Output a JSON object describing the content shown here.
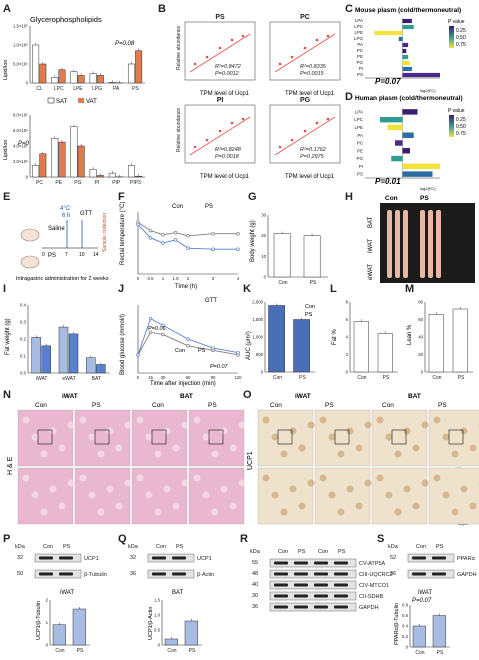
{
  "panel_letters": [
    "A",
    "B",
    "C",
    "D",
    "E",
    "F",
    "G",
    "H",
    "I",
    "J",
    "K",
    "L",
    "M",
    "N",
    "O",
    "P",
    "Q",
    "R",
    "S"
  ],
  "panelA": {
    "title": "Glycerophospholipids",
    "ylabel": "Lipid/ion",
    "legend": [
      "SAT",
      "VAT"
    ],
    "colors": {
      "SAT": "#ffffff",
      "VAT": "#e07b4f"
    },
    "top": {
      "ymax_label": "1.5×10⁶",
      "ticks": [
        "0",
        "5.0×10⁵",
        "1.0×10⁶",
        "1.5×10⁶"
      ],
      "p_label": "P=0.08"
    },
    "bottom": {
      "ticks": [
        "0",
        "2.0×10⁵",
        "4.0×10⁵",
        "6.0×10⁵",
        "8.0×10⁵"
      ],
      "p_label": "P=0"
    }
  },
  "panelB": {
    "xlabel": "TPM level of Ucp1",
    "ylabel": "Relative abundance"
  },
  "panelC": {
    "title": "Mouse plasm (cold/thermoneutral)",
    "legend_title": "P value",
    "legend_ticks": [
      "0.25",
      "0.50",
      "0.75"
    ],
    "p_label": "P=0.07",
    "xlabel": "log2(FC)"
  },
  "panelD": {
    "title": "Human plasm (cold/thermoneutral)",
    "legend_title": "P value",
    "legend_ticks": [
      "0.25",
      "0.50",
      "0.75"
    ],
    "p_label": "P=0.01",
    "xlabel": "log2(FC)"
  },
  "panelE": {
    "temp": "4°C",
    "hours": "6 h",
    "gtt": "GTT",
    "saline": "Saline",
    "ps": "PS",
    "sample": "Sample collection",
    "timeline": [
      "0",
      "7",
      "10",
      "14"
    ],
    "caption": "Intragastric administration for 2 weeks"
  },
  "panelF": {
    "ylabel": "Rectal temperature (°C)",
    "xlabel": "Time (h)",
    "legend": [
      "Con",
      "PS"
    ],
    "sig": [
      "**",
      "**",
      "**"
    ]
  },
  "panelG": {
    "ylabel": "Body weight (g)",
    "ticks": [
      "0",
      "10",
      "20",
      "30"
    ],
    "groups": [
      "Con",
      "PS"
    ]
  },
  "panelH": {
    "cols": [
      "Con",
      "PS"
    ],
    "rows": [
      "BAT",
      "iWAT",
      "eWAT"
    ]
  },
  "panelI": {
    "ylabel": "Fat weight (g)",
    "groups": [
      "iWAT",
      "eWAT",
      "BAT"
    ],
    "ticks": [
      "0.0",
      "0.1",
      "0.2",
      "0.3",
      "0.4"
    ]
  },
  "panelJ": {
    "title": "GTT",
    "ylabel": "Blood glucose (mmol/l)",
    "xlabel": "Time after injection (min)",
    "legend": [
      "Con",
      "PS"
    ],
    "p1": "P=0.06",
    "p2": "P=0.07",
    "xticks": [
      "0",
      "30",
      "60",
      "90",
      "120"
    ],
    "yticks": [
      "0",
      "10",
      "20",
      "30"
    ]
  },
  "panelK": {
    "ylabel": "AUC (μm²)",
    "groups": [
      "Con",
      "PS"
    ],
    "ticks": [
      "0",
      "500",
      "1,000",
      "1,500",
      "2,000"
    ]
  },
  "panelL": {
    "ylabel": "Fat %",
    "groups": [
      "Con",
      "PS"
    ],
    "ticks": [
      "0",
      "2",
      "4",
      "6",
      "8"
    ]
  },
  "panelM": {
    "ylabel": "Lean %",
    "groups": [
      "Con",
      "PS"
    ],
    "ticks": [
      "0",
      "20",
      "40",
      "60",
      "80"
    ]
  },
  "panelN": {
    "side": "H & E",
    "groups": [
      "iWAT",
      "BAT"
    ],
    "cols": [
      "Con",
      "PS",
      "Con",
      "PS"
    ],
    "scale": "100μm"
  },
  "panelO": {
    "side": "UCP1",
    "groups": [
      "iWAT",
      "BAT"
    ],
    "cols": [
      "Con",
      "PS",
      "Con",
      "PS"
    ],
    "scale1": "100μm",
    "scale2": "50μm"
  },
  "panelP": {
    "kda": "kDa",
    "cols": [
      "Con",
      "PS"
    ],
    "bands": [
      {
        "kda": "32",
        "label": "UCP1"
      },
      {
        "kda": "50",
        "label": "β-Tubulin"
      }
    ],
    "tissue": "iWAT",
    "ylabel": "UCP1/β-Tubulin"
  },
  "panelQ": {
    "kda": "kDa",
    "cols": [
      "Con",
      "PS"
    ],
    "bands": [
      {
        "kda": "32",
        "label": "UCP1"
      },
      {
        "kda": "36",
        "label": "β-Actin"
      }
    ],
    "tissue": "BAT",
    "ylabel": "UCP1/β-Actin"
  },
  "panelR": {
    "kda": "kDa",
    "cols": [
      "Con",
      "PS",
      "Con",
      "PS"
    ],
    "bands": [
      {
        "kda": "55",
        "label": "CV-ATP5A"
      },
      {
        "kda": "48",
        "label": "CIII-UQCRC2"
      },
      {
        "kda": "40",
        "label": "CIV-MTCO1"
      },
      {
        "kda": "30",
        "label": "CII-SDHB"
      },
      {
        "kda": "36",
        "label": "GAPDH"
      }
    ]
  },
  "panelS": {
    "kda": "kDa",
    "cols": [
      "Con",
      "PS"
    ],
    "bands": [
      {
        "kda": "52",
        "label": "PPARα"
      },
      {
        "kda": "36",
        "label": "GAPDH"
      }
    ],
    "tissue": "iWAT",
    "p": "P=0.07",
    "ylabel": "PPARα/β-Tubulin"
  },
  "chart_data": [
    {
      "id": "A-top",
      "type": "bar",
      "categories": [
        "CL",
        "LPC",
        "LPE",
        "LPG",
        "PA",
        "PS"
      ],
      "series": [
        {
          "name": "SAT",
          "values": [
            1000000.0,
            150000.0,
            300000.0,
            250000.0,
            20000.0,
            500000.0
          ]
        },
        {
          "name": "VAT",
          "values": [
            500000.0,
            350000.0,
            200000.0,
            200000.0,
            5000.0,
            850000.0
          ]
        }
      ],
      "ylim": [
        0,
        1500000.0
      ]
    },
    {
      "id": "A-bottom",
      "type": "bar",
      "categories": [
        "PC",
        "PE",
        "PG",
        "PI",
        "PIP",
        "PIP3"
      ],
      "series": [
        {
          "name": "SAT",
          "values": [
            150000.0,
            500000.0,
            650000.0,
            100000.0,
            50000.0,
            150000.0
          ]
        },
        {
          "name": "VAT",
          "values": [
            300000.0,
            450000.0,
            400000.0,
            20000.0,
            3000.0,
            10000.0
          ]
        }
      ],
      "ylim": [
        0,
        800000.0
      ]
    },
    {
      "id": "B-PS",
      "type": "scatter",
      "title": "PS",
      "annot": [
        "R²=0.8472",
        "P=0.0012"
      ]
    },
    {
      "id": "B-PC",
      "type": "scatter",
      "title": "PC",
      "annot": [
        "R²=0.8335",
        "P=0.0015"
      ]
    },
    {
      "id": "B-PI",
      "type": "scatter",
      "title": "PI",
      "annot": [
        "R²=0.8248",
        "P=0.0018"
      ]
    },
    {
      "id": "B-PG",
      "type": "scatter",
      "title": "PG",
      "annot": [
        "R²=0.1762",
        "P=0.2975"
      ]
    },
    {
      "id": "C",
      "type": "bar",
      "categories": [
        "LPA",
        "LPC",
        "LPE",
        "LPG",
        "PA",
        "PC",
        "PE",
        "PG",
        "PI",
        "PS"
      ],
      "values": [
        0.05,
        0.06,
        -0.15,
        -0.02,
        0.03,
        0.02,
        0.03,
        0.04,
        0.05,
        0.2
      ],
      "xlim": [
        -0.2,
        0.2
      ]
    },
    {
      "id": "D",
      "type": "bar",
      "categories": [
        "LPA",
        "LPC",
        "LPE",
        "PA",
        "PC",
        "PE",
        "PG",
        "PI",
        "PS"
      ],
      "values": [
        0.4,
        -0.6,
        -0.4,
        0.3,
        -0.2,
        0.2,
        -0.3,
        1.0,
        0.8
      ],
      "xlim": [
        -1,
        1
      ]
    },
    {
      "id": "F",
      "type": "line",
      "x": [
        0,
        0.5,
        1,
        1.5,
        2,
        3,
        4
      ],
      "series": [
        {
          "name": "Con",
          "values": [
            38.0,
            37.2,
            36.8,
            37.0,
            36.7,
            36.9,
            36.9
          ]
        },
        {
          "name": "PS",
          "values": [
            37.8,
            36.5,
            36.0,
            36.3,
            35.5,
            35.4,
            35.4
          ]
        }
      ],
      "ylim": [
        33,
        39
      ]
    },
    {
      "id": "G",
      "type": "bar",
      "categories": [
        "Con",
        "PS"
      ],
      "values": [
        21,
        20
      ],
      "ylim": [
        0,
        30
      ]
    },
    {
      "id": "I",
      "type": "bar",
      "categories": [
        "iWAT",
        "eWAT",
        "BAT"
      ],
      "series": [
        {
          "name": "Con",
          "values": [
            0.21,
            0.27,
            0.09
          ]
        },
        {
          "name": "PS",
          "values": [
            0.16,
            0.23,
            0.05
          ]
        }
      ],
      "ylim": [
        0,
        0.4
      ]
    },
    {
      "id": "J",
      "type": "line",
      "x": [
        0,
        15,
        30,
        60,
        90,
        120
      ],
      "series": [
        {
          "name": "Con",
          "values": [
            8,
            18,
            17,
            12,
            10,
            8
          ]
        },
        {
          "name": "PS",
          "values": [
            8,
            24,
            21,
            15,
            11,
            9
          ]
        }
      ],
      "ylim": [
        0,
        30
      ]
    },
    {
      "id": "K",
      "type": "bar",
      "categories": [
        "Con",
        "PS"
      ],
      "values": [
        1900,
        1500
      ],
      "ylim": [
        0,
        2000
      ]
    },
    {
      "id": "L",
      "type": "bar",
      "categories": [
        "Con",
        "PS"
      ],
      "values": [
        5.8,
        4.4
      ],
      "ylim": [
        0,
        8
      ]
    },
    {
      "id": "M",
      "type": "bar",
      "categories": [
        "Con",
        "PS"
      ],
      "values": [
        66,
        72
      ],
      "ylim": [
        0,
        80
      ]
    },
    {
      "id": "P",
      "type": "bar",
      "categories": [
        "Con",
        "PS"
      ],
      "values": [
        0.9,
        1.6
      ],
      "ylim": [
        0,
        2
      ]
    },
    {
      "id": "Q",
      "type": "bar",
      "categories": [
        "Con",
        "PS"
      ],
      "values": [
        0.2,
        0.8
      ],
      "ylim": [
        0,
        1.5
      ]
    },
    {
      "id": "S",
      "type": "bar",
      "categories": [
        "Con",
        "PS"
      ],
      "values": [
        0.4,
        0.6
      ],
      "ylim": [
        0,
        0.8
      ]
    }
  ]
}
